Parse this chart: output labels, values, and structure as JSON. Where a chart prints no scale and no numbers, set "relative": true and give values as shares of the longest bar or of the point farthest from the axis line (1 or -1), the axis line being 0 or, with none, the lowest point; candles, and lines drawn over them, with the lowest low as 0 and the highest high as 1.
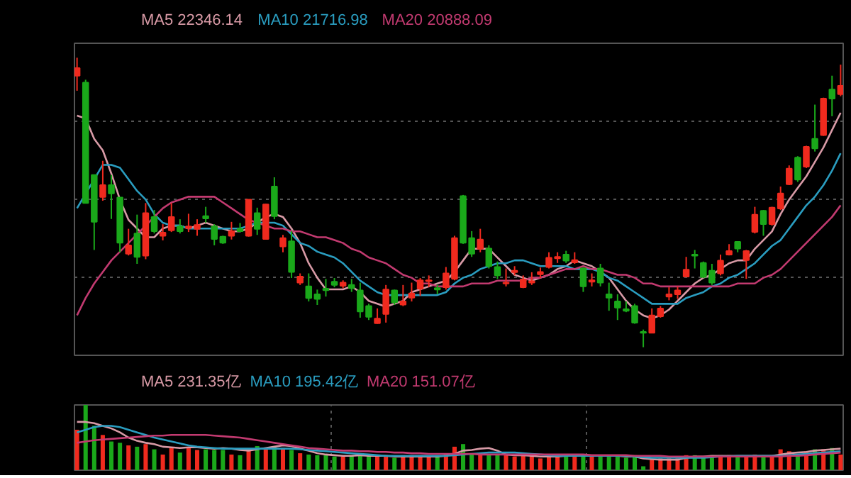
{
  "chart_data": [
    {
      "type": "candlestick",
      "relative": true,
      "grid": "y",
      "categories": [
        null,
        null,
        null,
        null,
        null,
        null,
        null,
        null,
        null,
        null,
        null,
        null,
        null,
        null,
        null,
        null,
        null,
        null,
        null,
        null,
        null,
        null,
        null,
        null,
        null,
        null,
        null,
        null,
        null,
        null,
        null,
        null,
        null,
        null,
        null,
        null,
        null,
        null,
        null,
        null,
        null,
        null,
        null,
        null,
        null,
        null,
        null,
        null,
        null,
        null,
        null,
        null,
        null,
        null,
        null,
        null,
        null,
        null,
        null,
        null,
        null,
        null,
        null,
        null,
        null,
        null,
        null,
        null,
        null,
        null,
        null,
        null,
        null,
        null,
        null,
        null,
        null,
        null,
        null,
        null,
        null,
        null,
        null,
        null,
        null,
        null,
        null,
        null,
        null,
        null
      ],
      "ohlc": [
        [
          0.938,
          1.0,
          0.886,
          0.964
        ],
        [
          0.914,
          0.924,
          0.498,
          0.498
        ],
        [
          0.595,
          0.595,
          0.336,
          0.433
        ],
        [
          0.519,
          0.644,
          0.506,
          0.56
        ],
        [
          0.56,
          0.595,
          0.443,
          0.531
        ],
        [
          0.517,
          0.517,
          0.328,
          0.361
        ],
        [
          0.323,
          0.409,
          0.317,
          0.352
        ],
        [
          0.393,
          0.458,
          0.288,
          0.312
        ],
        [
          0.316,
          0.498,
          0.304,
          0.463
        ],
        [
          0.45,
          0.474,
          0.393,
          0.401
        ],
        [
          0.385,
          0.425,
          0.369,
          0.396
        ],
        [
          0.404,
          0.498,
          0.398,
          0.45
        ],
        [
          0.417,
          0.442,
          0.393,
          0.401
        ],
        [
          0.411,
          0.461,
          0.398,
          0.417
        ],
        [
          0.409,
          0.442,
          0.385,
          0.422
        ],
        [
          0.453,
          0.485,
          0.43,
          0.445
        ],
        [
          0.417,
          0.425,
          0.352,
          0.374
        ],
        [
          0.382,
          0.385,
          0.357,
          0.361
        ],
        [
          0.385,
          0.433,
          0.372,
          0.401
        ],
        [
          0.409,
          0.429,
          0.398,
          0.401
        ],
        [
          0.385,
          0.51,
          0.382,
          0.51
        ],
        [
          0.463,
          0.482,
          0.388,
          0.409
        ],
        [
          0.374,
          0.495,
          0.372,
          0.493
        ],
        [
          0.555,
          0.587,
          0.442,
          0.453
        ],
        [
          0.348,
          0.388,
          0.328,
          0.377
        ],
        [
          0.366,
          0.401,
          0.239,
          0.26
        ],
        [
          0.223,
          0.255,
          0.215,
          0.244
        ],
        [
          0.21,
          0.255,
          0.158,
          0.17
        ],
        [
          0.183,
          0.199,
          0.146,
          0.167
        ],
        [
          0.202,
          0.236,
          0.175,
          0.197
        ],
        [
          0.226,
          0.239,
          0.207,
          0.215
        ],
        [
          0.212,
          0.231,
          0.204,
          0.223
        ],
        [
          0.215,
          0.236,
          0.191,
          0.204
        ],
        [
          0.196,
          0.223,
          0.102,
          0.123
        ],
        [
          0.142,
          0.15,
          0.094,
          0.105
        ],
        [
          0.083,
          0.134,
          0.081,
          0.099
        ],
        [
          0.115,
          0.215,
          0.085,
          0.199
        ],
        [
          0.196,
          0.199,
          0.146,
          0.155
        ],
        [
          0.147,
          0.215,
          0.142,
          0.158
        ],
        [
          0.171,
          0.223,
          0.158,
          0.186
        ],
        [
          0.202,
          0.239,
          0.178,
          0.231
        ],
        [
          0.228,
          0.248,
          0.207,
          0.231
        ],
        [
          0.204,
          0.215,
          0.183,
          0.199
        ],
        [
          0.207,
          0.277,
          0.199,
          0.255
        ],
        [
          0.236,
          0.385,
          0.231,
          0.377
        ],
        [
          0.522,
          0.526,
          0.357,
          0.361
        ],
        [
          0.377,
          0.401,
          0.312,
          0.323
        ],
        [
          0.34,
          0.409,
          0.328,
          0.372
        ],
        [
          0.341,
          0.352,
          0.272,
          0.28
        ],
        [
          0.277,
          0.296,
          0.236,
          0.248
        ],
        [
          0.22,
          0.272,
          0.21,
          0.223
        ],
        [
          0.264,
          0.28,
          0.248,
          0.259
        ],
        [
          0.207,
          0.248,
          0.204,
          0.234
        ],
        [
          0.223,
          0.259,
          0.215,
          0.228
        ],
        [
          0.252,
          0.275,
          0.239,
          0.26
        ],
        [
          0.277,
          0.328,
          0.272,
          0.309
        ],
        [
          0.307,
          0.328,
          0.291,
          0.312
        ],
        [
          0.32,
          0.333,
          0.291,
          0.299
        ],
        [
          0.293,
          0.328,
          0.288,
          0.301
        ],
        [
          0.272,
          0.275,
          0.191,
          0.21
        ],
        [
          0.226,
          0.255,
          0.21,
          0.231
        ],
        [
          0.272,
          0.288,
          0.21,
          0.223
        ],
        [
          0.183,
          0.223,
          0.126,
          0.171
        ],
        [
          0.158,
          0.183,
          0.094,
          0.137
        ],
        [
          0.131,
          0.158,
          0.121,
          0.126
        ],
        [
          0.142,
          0.15,
          0.081,
          0.085
        ],
        [
          0.053,
          0.061,
          0.0,
          0.05
        ],
        [
          0.05,
          0.134,
          0.049,
          0.11
        ],
        [
          0.107,
          0.142,
          0.102,
          0.134
        ],
        [
          0.175,
          0.207,
          0.162,
          0.183
        ],
        [
          0.183,
          0.21,
          0.167,
          0.196
        ],
        [
          0.244,
          0.312,
          0.243,
          0.268
        ],
        [
          0.32,
          0.336,
          0.272,
          0.316
        ],
        [
          0.291,
          0.296,
          0.239,
          0.243
        ],
        [
          0.264,
          0.288,
          0.215,
          0.223
        ],
        [
          0.255,
          0.32,
          0.248,
          0.299
        ],
        [
          0.32,
          0.356,
          0.317,
          0.332
        ],
        [
          0.364,
          0.366,
          0.328,
          0.341
        ],
        [
          0.301,
          0.336,
          0.236,
          0.332
        ],
        [
          0.398,
          0.485,
          0.393,
          0.458
        ],
        [
          0.471,
          0.474,
          0.385,
          0.425
        ],
        [
          0.425,
          0.485,
          0.42,
          0.482
        ],
        [
          0.479,
          0.555,
          0.474,
          0.531
        ],
        [
          0.563,
          0.628,
          0.56,
          0.617
        ],
        [
          0.655,
          0.66,
          0.571,
          0.579
        ],
        [
          0.624,
          0.696,
          0.619,
          0.692
        ],
        [
          0.72,
          0.838,
          0.676,
          0.687
        ],
        [
          0.733,
          0.862,
          0.73,
          0.859
        ],
        [
          0.89,
          0.938,
          0.798,
          0.859
        ],
        [
          0.874,
          0.976,
          0.867,
          0.903
        ]
      ],
      "colors": [
        "#f02a1e",
        "#1aa81a",
        "#1aa81a",
        "#f02a1e",
        "#1aa81a",
        "#1aa81a",
        "#f02a1e",
        "#1aa81a",
        "#f02a1e",
        "#1aa81a",
        "#f02a1e",
        "#f02a1e",
        "#1aa81a",
        "#f02a1e",
        "#f02a1e",
        "#1aa81a",
        "#1aa81a",
        "#1aa81a",
        "#f02a1e",
        "#1aa81a",
        "#f02a1e",
        "#1aa81a",
        "#f02a1e",
        "#1aa81a",
        "#f02a1e",
        "#1aa81a",
        "#f02a1e",
        "#1aa81a",
        "#1aa81a",
        "#1aa81a",
        "#1aa81a",
        "#f02a1e",
        "#1aa81a",
        "#1aa81a",
        "#1aa81a",
        "#f02a1e",
        "#f02a1e",
        "#1aa81a",
        "#f02a1e",
        "#f02a1e",
        "#f02a1e",
        "#f02a1e",
        "#1aa81a",
        "#f02a1e",
        "#f02a1e",
        "#1aa81a",
        "#1aa81a",
        "#f02a1e",
        "#1aa81a",
        "#1aa81a",
        "#f02a1e",
        "#f02a1e",
        "#f02a1e",
        "#f02a1e",
        "#f02a1e",
        "#f02a1e",
        "#f02a1e",
        "#1aa81a",
        "#f02a1e",
        "#1aa81a",
        "#f02a1e",
        "#1aa81a",
        "#1aa81a",
        "#1aa81a",
        "#1aa81a",
        "#1aa81a",
        "#1aa81a",
        "#f02a1e",
        "#f02a1e",
        "#f02a1e",
        "#f02a1e",
        "#f02a1e",
        "#1aa81a",
        "#1aa81a",
        "#1aa81a",
        "#f02a1e",
        "#f02a1e",
        "#1aa81a",
        "#f02a1e",
        "#f02a1e",
        "#1aa81a",
        "#f02a1e",
        "#f02a1e",
        "#f02a1e",
        "#1aa81a",
        "#f02a1e",
        "#1aa81a",
        "#f02a1e",
        "#1aa81a",
        "#f02a1e"
      ],
      "series": [
        {
          "name": "MA5 22346.14",
          "type": "line",
          "color": "#d89aa6",
          "values": [
            0.8,
            0.79,
            0.72,
            0.68,
            0.6,
            0.51,
            0.44,
            0.41,
            0.38,
            0.38,
            0.41,
            0.42,
            0.42,
            0.41,
            0.42,
            0.43,
            0.42,
            0.41,
            0.4,
            0.4,
            0.41,
            0.43,
            0.45,
            0.46,
            0.45,
            0.41,
            0.36,
            0.29,
            0.24,
            0.2,
            0.2,
            0.2,
            0.21,
            0.19,
            0.16,
            0.15,
            0.14,
            0.15,
            0.16,
            0.19,
            0.2,
            0.21,
            0.22,
            0.23,
            0.26,
            0.3,
            0.34,
            0.34,
            0.34,
            0.31,
            0.28,
            0.25,
            0.24,
            0.23,
            0.24,
            0.25,
            0.27,
            0.28,
            0.3,
            0.29,
            0.28,
            0.26,
            0.24,
            0.2,
            0.16,
            0.13,
            0.11,
            0.1,
            0.11,
            0.13,
            0.16,
            0.19,
            0.22,
            0.24,
            0.25,
            0.27,
            0.29,
            0.3,
            0.3,
            0.34,
            0.37,
            0.4,
            0.46,
            0.51,
            0.55,
            0.59,
            0.64,
            0.69,
            0.75,
            0.81
          ]
        },
        {
          "name": "MA10 21716.98",
          "type": "line",
          "color": "#2a9dc0",
          "values": [
            0.48,
            0.53,
            0.58,
            0.63,
            0.63,
            0.62,
            0.58,
            0.54,
            0.51,
            0.46,
            0.43,
            0.42,
            0.42,
            0.41,
            0.41,
            0.41,
            0.41,
            0.41,
            0.41,
            0.41,
            0.42,
            0.43,
            0.43,
            0.43,
            0.42,
            0.39,
            0.36,
            0.35,
            0.33,
            0.32,
            0.31,
            0.29,
            0.26,
            0.23,
            0.21,
            0.19,
            0.18,
            0.18,
            0.18,
            0.18,
            0.18,
            0.18,
            0.18,
            0.19,
            0.22,
            0.24,
            0.25,
            0.27,
            0.28,
            0.29,
            0.29,
            0.3,
            0.3,
            0.29,
            0.28,
            0.28,
            0.28,
            0.28,
            0.27,
            0.27,
            0.27,
            0.26,
            0.24,
            0.23,
            0.21,
            0.19,
            0.17,
            0.15,
            0.15,
            0.15,
            0.15,
            0.17,
            0.18,
            0.19,
            0.21,
            0.22,
            0.24,
            0.25,
            0.27,
            0.29,
            0.32,
            0.35,
            0.37,
            0.41,
            0.45,
            0.49,
            0.52,
            0.56,
            0.61,
            0.67
          ]
        },
        {
          "name": "MA20 20888.09",
          "type": "line",
          "color": "#c23a70",
          "values": [
            0.11,
            0.17,
            0.22,
            0.26,
            0.3,
            0.33,
            0.36,
            0.39,
            0.42,
            0.45,
            0.48,
            0.5,
            0.51,
            0.52,
            0.52,
            0.52,
            0.52,
            0.5,
            0.48,
            0.46,
            0.44,
            0.43,
            0.42,
            0.41,
            0.41,
            0.4,
            0.4,
            0.39,
            0.38,
            0.38,
            0.37,
            0.36,
            0.34,
            0.33,
            0.31,
            0.3,
            0.29,
            0.27,
            0.25,
            0.24,
            0.22,
            0.22,
            0.21,
            0.21,
            0.21,
            0.21,
            0.22,
            0.22,
            0.22,
            0.23,
            0.23,
            0.23,
            0.23,
            0.24,
            0.24,
            0.25,
            0.26,
            0.27,
            0.27,
            0.28,
            0.27,
            0.27,
            0.26,
            0.25,
            0.25,
            0.24,
            0.22,
            0.22,
            0.21,
            0.21,
            0.21,
            0.21,
            0.21,
            0.21,
            0.21,
            0.21,
            0.21,
            0.22,
            0.22,
            0.22,
            0.24,
            0.25,
            0.27,
            0.3,
            0.33,
            0.36,
            0.39,
            0.42,
            0.45,
            0.49
          ]
        }
      ]
    },
    {
      "type": "bar",
      "relative": true,
      "grid": "x",
      "categories": [
        null,
        null,
        null,
        null,
        null,
        null,
        null,
        null,
        null,
        null,
        null,
        null,
        null,
        null,
        null,
        null,
        null,
        null,
        null,
        null,
        null,
        null,
        null,
        null,
        null,
        null,
        null,
        null,
        null,
        null,
        null,
        null,
        null,
        null,
        null,
        null,
        null,
        null,
        null,
        null,
        null,
        null,
        null,
        null,
        null,
        null,
        null,
        null,
        null,
        null,
        null,
        null,
        null,
        null,
        null,
        null,
        null,
        null,
        null,
        null,
        null,
        null,
        null,
        null,
        null,
        null,
        null,
        null,
        null,
        null,
        null,
        null,
        null,
        null,
        null,
        null,
        null,
        null,
        null,
        null,
        null,
        null,
        null,
        null,
        null,
        null,
        null,
        null,
        null,
        null
      ],
      "values": [
        0.62,
        1.0,
        0.68,
        0.54,
        0.44,
        0.42,
        0.38,
        0.36,
        0.4,
        0.32,
        0.24,
        0.34,
        0.27,
        0.34,
        0.31,
        0.32,
        0.31,
        0.31,
        0.24,
        0.23,
        0.31,
        0.37,
        0.34,
        0.36,
        0.34,
        0.31,
        0.26,
        0.24,
        0.23,
        0.24,
        0.21,
        0.21,
        0.23,
        0.24,
        0.23,
        0.21,
        0.23,
        0.19,
        0.23,
        0.23,
        0.23,
        0.21,
        0.23,
        0.24,
        0.36,
        0.4,
        0.24,
        0.24,
        0.24,
        0.23,
        0.24,
        0.21,
        0.23,
        0.23,
        0.18,
        0.21,
        0.24,
        0.23,
        0.21,
        0.23,
        0.24,
        0.23,
        0.23,
        0.23,
        0.19,
        0.23,
        0.06,
        0.16,
        0.19,
        0.21,
        0.21,
        0.23,
        0.23,
        0.21,
        0.23,
        0.23,
        0.23,
        0.21,
        0.21,
        0.24,
        0.23,
        0.23,
        0.32,
        0.29,
        0.24,
        0.29,
        0.32,
        0.32,
        0.34,
        0.24
      ],
      "colors": [
        "#f02a1e",
        "#1aa81a",
        "#1aa81a",
        "#f02a1e",
        "#1aa81a",
        "#1aa81a",
        "#f02a1e",
        "#1aa81a",
        "#f02a1e",
        "#1aa81a",
        "#f02a1e",
        "#f02a1e",
        "#1aa81a",
        "#f02a1e",
        "#f02a1e",
        "#1aa81a",
        "#1aa81a",
        "#1aa81a",
        "#f02a1e",
        "#1aa81a",
        "#f02a1e",
        "#1aa81a",
        "#f02a1e",
        "#1aa81a",
        "#f02a1e",
        "#1aa81a",
        "#f02a1e",
        "#1aa81a",
        "#1aa81a",
        "#1aa81a",
        "#1aa81a",
        "#f02a1e",
        "#1aa81a",
        "#1aa81a",
        "#1aa81a",
        "#f02a1e",
        "#f02a1e",
        "#1aa81a",
        "#f02a1e",
        "#f02a1e",
        "#f02a1e",
        "#f02a1e",
        "#1aa81a",
        "#f02a1e",
        "#f02a1e",
        "#1aa81a",
        "#1aa81a",
        "#f02a1e",
        "#1aa81a",
        "#1aa81a",
        "#f02a1e",
        "#f02a1e",
        "#f02a1e",
        "#f02a1e",
        "#f02a1e",
        "#f02a1e",
        "#f02a1e",
        "#1aa81a",
        "#f02a1e",
        "#1aa81a",
        "#f02a1e",
        "#1aa81a",
        "#1aa81a",
        "#1aa81a",
        "#1aa81a",
        "#1aa81a",
        "#1aa81a",
        "#f02a1e",
        "#f02a1e",
        "#f02a1e",
        "#f02a1e",
        "#f02a1e",
        "#1aa81a",
        "#1aa81a",
        "#1aa81a",
        "#f02a1e",
        "#f02a1e",
        "#1aa81a",
        "#f02a1e",
        "#f02a1e",
        "#1aa81a",
        "#f02a1e",
        "#f02a1e",
        "#f02a1e",
        "#1aa81a",
        "#f02a1e",
        "#1aa81a",
        "#f02a1e",
        "#1aa81a",
        "#f02a1e"
      ],
      "series": [
        {
          "name": "MA5 231.35亿",
          "type": "line",
          "color": "#d89aa6",
          "values": [
            0.74,
            0.74,
            0.72,
            0.68,
            0.64,
            0.58,
            0.5,
            0.45,
            0.42,
            0.4,
            0.36,
            0.35,
            0.34,
            0.35,
            0.35,
            0.34,
            0.33,
            0.34,
            0.33,
            0.31,
            0.3,
            0.32,
            0.34,
            0.36,
            0.38,
            0.37,
            0.33,
            0.3,
            0.26,
            0.24,
            0.23,
            0.22,
            0.22,
            0.23,
            0.22,
            0.22,
            0.22,
            0.21,
            0.21,
            0.21,
            0.21,
            0.21,
            0.21,
            0.22,
            0.25,
            0.3,
            0.31,
            0.33,
            0.34,
            0.3,
            0.24,
            0.23,
            0.23,
            0.22,
            0.21,
            0.21,
            0.21,
            0.22,
            0.22,
            0.22,
            0.22,
            0.22,
            0.22,
            0.22,
            0.21,
            0.21,
            0.18,
            0.17,
            0.16,
            0.16,
            0.16,
            0.19,
            0.21,
            0.21,
            0.22,
            0.22,
            0.22,
            0.22,
            0.22,
            0.22,
            0.22,
            0.22,
            0.24,
            0.26,
            0.27,
            0.28,
            0.3,
            0.31,
            0.32,
            0.33
          ]
        },
        {
          "name": "MA10 195.42亿",
          "type": "line",
          "color": "#2a9dc0",
          "values": [
            0.58,
            0.62,
            0.66,
            0.68,
            0.68,
            0.66,
            0.62,
            0.58,
            0.54,
            0.5,
            0.47,
            0.44,
            0.41,
            0.38,
            0.36,
            0.35,
            0.34,
            0.33,
            0.33,
            0.33,
            0.33,
            0.33,
            0.33,
            0.33,
            0.33,
            0.33,
            0.32,
            0.31,
            0.3,
            0.29,
            0.28,
            0.27,
            0.26,
            0.25,
            0.24,
            0.23,
            0.22,
            0.22,
            0.22,
            0.22,
            0.22,
            0.22,
            0.22,
            0.22,
            0.23,
            0.24,
            0.25,
            0.26,
            0.27,
            0.27,
            0.27,
            0.27,
            0.26,
            0.25,
            0.24,
            0.23,
            0.22,
            0.22,
            0.22,
            0.22,
            0.22,
            0.22,
            0.22,
            0.22,
            0.22,
            0.21,
            0.2,
            0.19,
            0.19,
            0.19,
            0.19,
            0.19,
            0.19,
            0.19,
            0.2,
            0.21,
            0.21,
            0.22,
            0.22,
            0.22,
            0.22,
            0.22,
            0.22,
            0.23,
            0.24,
            0.25,
            0.26,
            0.27,
            0.28,
            0.29
          ]
        },
        {
          "name": "MA20 151.07亿",
          "type": "line",
          "color": "#c23a70",
          "values": [
            0.42,
            0.44,
            0.46,
            0.47,
            0.48,
            0.49,
            0.5,
            0.51,
            0.52,
            0.53,
            0.53,
            0.54,
            0.54,
            0.54,
            0.54,
            0.54,
            0.53,
            0.52,
            0.51,
            0.5,
            0.48,
            0.46,
            0.44,
            0.42,
            0.4,
            0.38,
            0.36,
            0.34,
            0.33,
            0.32,
            0.31,
            0.3,
            0.3,
            0.29,
            0.29,
            0.28,
            0.28,
            0.27,
            0.27,
            0.26,
            0.26,
            0.25,
            0.25,
            0.25,
            0.25,
            0.25,
            0.25,
            0.24,
            0.24,
            0.24,
            0.24,
            0.24,
            0.24,
            0.24,
            0.24,
            0.24,
            0.24,
            0.24,
            0.24,
            0.24,
            0.23,
            0.23,
            0.23,
            0.23,
            0.23,
            0.22,
            0.22,
            0.22,
            0.22,
            0.21,
            0.21,
            0.21,
            0.21,
            0.21,
            0.21,
            0.21,
            0.21,
            0.21,
            0.21,
            0.21,
            0.21,
            0.21,
            0.21,
            0.22,
            0.22,
            0.23,
            0.24,
            0.25,
            0.26,
            0.27
          ]
        }
      ]
    }
  ]
}
